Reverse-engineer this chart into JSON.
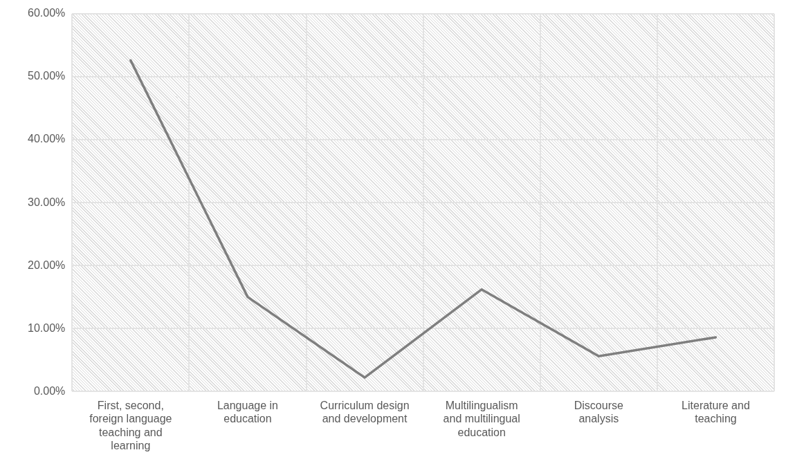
{
  "chart_data": {
    "type": "line",
    "categories": [
      "First, second, foreign language teaching and learning",
      "Language in education",
      "Curriculum design and development",
      "Multilingualism and multilingual education",
      "Discourse analysis",
      "Literature and teaching"
    ],
    "series": [
      {
        "color": "#7f7f7f",
        "values": [
          52.6,
          15.0,
          2.2,
          16.2,
          5.6,
          8.6
        ]
      }
    ],
    "ylim": [
      0,
      60
    ],
    "yticks": [
      {
        "value": 0,
        "label": "0.00%"
      },
      {
        "value": 10,
        "label": "10.00%"
      },
      {
        "value": 20,
        "label": "20.00%"
      },
      {
        "value": 30,
        "label": "30.00%"
      },
      {
        "value": 40,
        "label": "40.00%"
      },
      {
        "value": 50,
        "label": "50.00%"
      },
      {
        "value": 60,
        "label": "60.00%"
      }
    ],
    "grid": true,
    "legend": false,
    "marker": "none",
    "line_style": "solid"
  }
}
